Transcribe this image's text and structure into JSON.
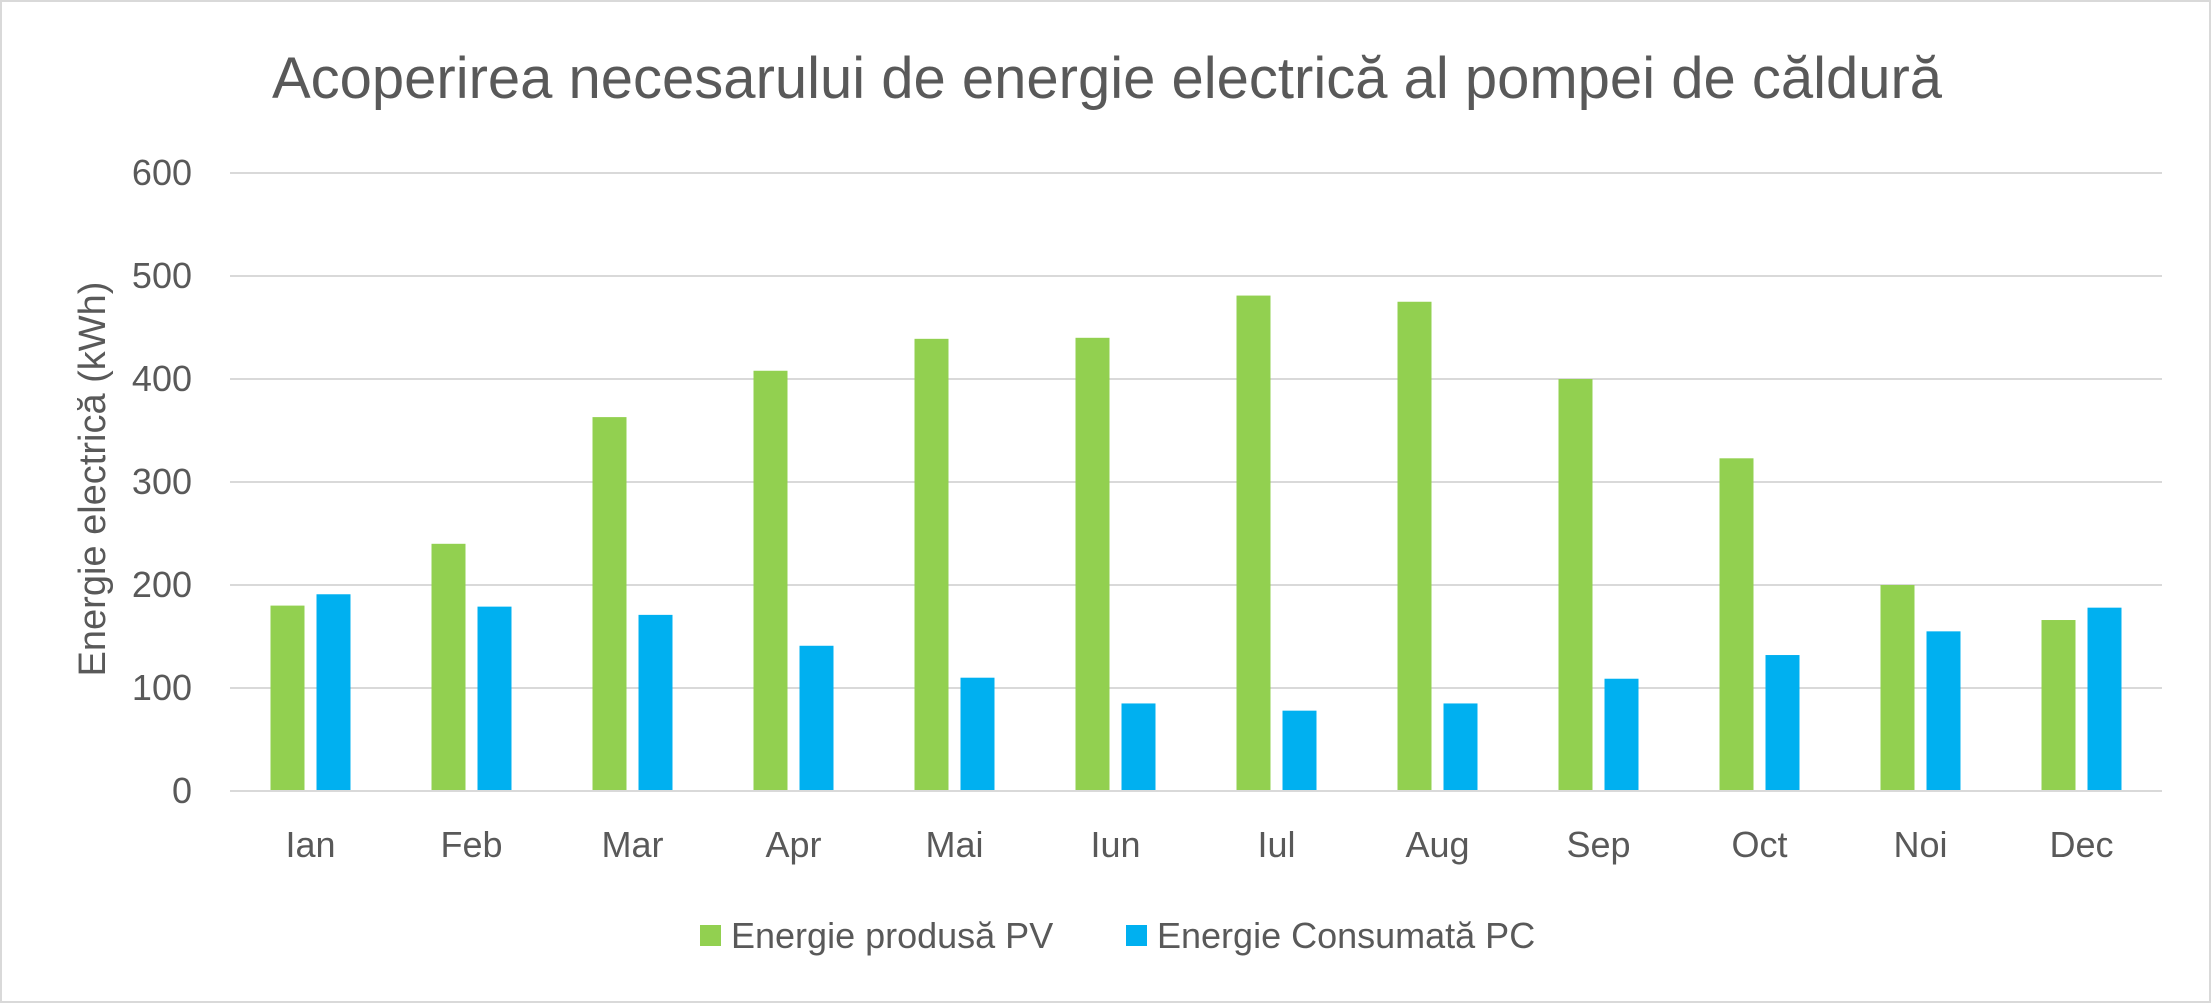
{
  "chart_data": {
    "type": "bar",
    "title": "Acoperirea necesarului de energie electrică al pompei de căldură",
    "xlabel": "",
    "ylabel": "Energie electrică (kWh)",
    "ylim": [
      0,
      600
    ],
    "yticks": [
      "0",
      "100",
      "200",
      "300",
      "400",
      "500",
      "600"
    ],
    "grid": true,
    "legend_position": "bottom",
    "categories": [
      "Ian",
      "Feb",
      "Mar",
      "Apr",
      "Mai",
      "Iun",
      "Iul",
      "Aug",
      "Sep",
      "Oct",
      "Noi",
      "Dec"
    ],
    "series": [
      {
        "name": "Energie produsă PV",
        "color": "#92d050",
        "values": [
          180,
          240,
          363,
          408,
          439,
          440,
          481,
          475,
          400,
          323,
          200,
          166
        ]
      },
      {
        "name": "Energie Consumată PC",
        "color": "#00b0f0",
        "values": [
          191,
          179,
          171,
          141,
          110,
          85,
          78,
          85,
          109,
          132,
          155,
          178
        ]
      }
    ]
  }
}
